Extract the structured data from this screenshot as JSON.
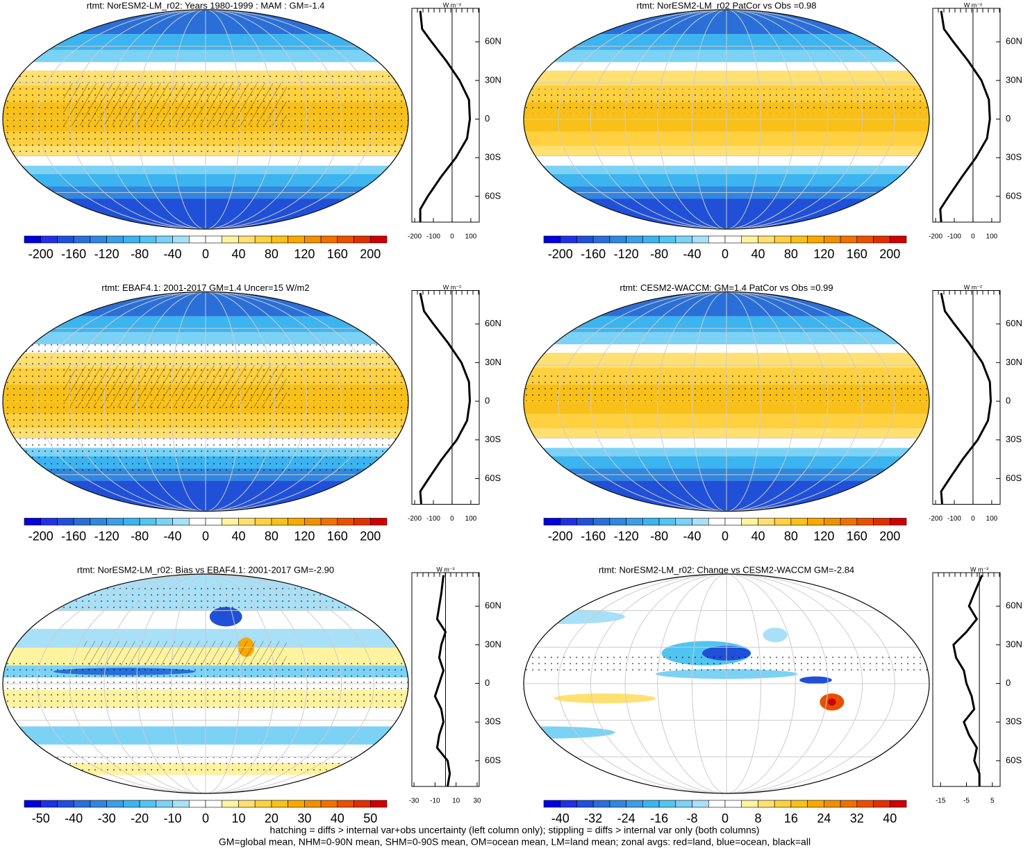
{
  "chart_data": [
    {
      "type": "zonal-map",
      "title": "rtmt: NorESM2-LM_r02: Years 1980-1999 : MAM : GM=-1.4",
      "colorbar": {
        "clim": [
          -220,
          220
        ],
        "ticks": [
          -200,
          -160,
          -120,
          -80,
          -40,
          0,
          40,
          80,
          120,
          160,
          200
        ]
      },
      "unit": "W m⁻²",
      "xlim": [
        -215,
        145
      ],
      "xticks": [
        -200,
        -100,
        0,
        100
      ],
      "ylim": [
        -80,
        86
      ],
      "yticks": [
        {
          "value": 60,
          "label": "60N"
        },
        {
          "value": 30,
          "label": "30N"
        },
        0,
        {
          "value": -30,
          "label": "30S"
        },
        {
          "value": -60,
          "label": "60S"
        }
      ],
      "lat": [
        84,
        70,
        60,
        45,
        30,
        15,
        0,
        -15,
        -30,
        -45,
        -60,
        -70,
        -80
      ],
      "values": [
        -170,
        -160,
        -110,
        -30,
        40,
        90,
        95,
        80,
        20,
        -60,
        -130,
        -170,
        -170
      ]
    },
    {
      "type": "zonal-map",
      "title": "rtmt: NorESM2-LM_r02 PatCor vs Obs =0.98",
      "colorbar": {
        "clim": [
          -220,
          220
        ],
        "ticks": [
          -200,
          -160,
          -120,
          -80,
          -40,
          0,
          40,
          80,
          120,
          160,
          200
        ]
      },
      "unit": "W m⁻²",
      "xlim": [
        -215,
        145
      ],
      "xticks": [
        -200,
        -100,
        0,
        100
      ],
      "ylim": [
        -80,
        86
      ],
      "yticks": [
        {
          "value": 60,
          "label": "60N"
        },
        {
          "value": 30,
          "label": "30N"
        },
        0,
        {
          "value": -30,
          "label": "30S"
        },
        {
          "value": -60,
          "label": "60S"
        }
      ],
      "lat": [
        84,
        70,
        60,
        45,
        30,
        15,
        0,
        -15,
        -30,
        -45,
        -60,
        -70,
        -80
      ],
      "values": [
        -170,
        -155,
        -105,
        -25,
        45,
        85,
        90,
        75,
        15,
        -60,
        -130,
        -175,
        -170
      ]
    },
    {
      "type": "zonal-map",
      "title": "rtmt: EBAF4.1: 2001-2017 GM=1.4 Uncer=15 W/m2",
      "colorbar": {
        "clim": [
          -220,
          220
        ],
        "ticks": [
          -200,
          -160,
          -120,
          -80,
          -40,
          0,
          40,
          80,
          120,
          160,
          200
        ]
      },
      "unit": "W m⁻²",
      "xlim": [
        -215,
        145
      ],
      "xticks": [
        -200,
        -100,
        0,
        100
      ],
      "ylim": [
        -80,
        86
      ],
      "yticks": [
        {
          "value": 60,
          "label": "60N"
        },
        {
          "value": 30,
          "label": "30N"
        },
        0,
        {
          "value": -30,
          "label": "30S"
        },
        {
          "value": -60,
          "label": "60S"
        }
      ],
      "lat": [
        84,
        70,
        60,
        45,
        30,
        15,
        0,
        -15,
        -30,
        -45,
        -60,
        -70,
        -80
      ],
      "values": [
        -170,
        -150,
        -100,
        -20,
        50,
        90,
        95,
        80,
        25,
        -55,
        -125,
        -170,
        -165
      ]
    },
    {
      "type": "zonal-map",
      "title": "rtmt: CESM2-WACCM: GM=1.4 PatCor vs Obs =0.99",
      "colorbar": {
        "clim": [
          -220,
          220
        ],
        "ticks": [
          -200,
          -160,
          -120,
          -80,
          -40,
          0,
          40,
          80,
          120,
          160,
          200
        ]
      },
      "unit": "W m⁻²",
      "xlim": [
        -215,
        145
      ],
      "xticks": [
        -200,
        -100,
        0,
        100
      ],
      "ylim": [
        -80,
        86
      ],
      "yticks": [
        {
          "value": 60,
          "label": "60N"
        },
        {
          "value": 30,
          "label": "30N"
        },
        0,
        {
          "value": -30,
          "label": "30S"
        },
        {
          "value": -60,
          "label": "60S"
        }
      ],
      "lat": [
        84,
        70,
        60,
        45,
        30,
        15,
        0,
        -15,
        -30,
        -45,
        -60,
        -70,
        -80
      ],
      "values": [
        -170,
        -150,
        -100,
        -20,
        50,
        90,
        95,
        80,
        25,
        -55,
        -125,
        -170,
        -165
      ]
    },
    {
      "type": "zonal-map",
      "title": "rtmt: NorESM2-LM_r02: Bias vs EBAF4.1: 2001-2017 GM=-2.90",
      "colorbar": {
        "clim": [
          -55,
          55
        ],
        "ticks": [
          -50,
          -40,
          -30,
          -20,
          -10,
          0,
          10,
          20,
          30,
          40,
          50
        ]
      },
      "unit": "W m⁻²",
      "xlim": [
        -32,
        32
      ],
      "xticks": [
        -30,
        -10,
        10,
        30
      ],
      "ylim": [
        -80,
        86
      ],
      "yticks": [
        {
          "value": 60,
          "label": "60N"
        },
        {
          "value": 30,
          "label": "30N"
        },
        0,
        {
          "value": -30,
          "label": "30S"
        },
        {
          "value": -60,
          "label": "60S"
        }
      ],
      "lat": [
        84,
        70,
        60,
        50,
        40,
        30,
        20,
        10,
        0,
        -10,
        -20,
        -30,
        -40,
        -50,
        -60,
        -70,
        -80
      ],
      "values": [
        -2,
        -4,
        -6,
        -8,
        0,
        -4,
        -6,
        -2,
        -6,
        -10,
        -4,
        -2,
        -6,
        -8,
        2,
        4,
        2
      ]
    },
    {
      "type": "zonal-map",
      "title": "rtmt: NorESM2-LM_r02: Change vs CESM2-WACCM GM=-2.84",
      "colorbar": {
        "clim": [
          -44,
          44
        ],
        "ticks": [
          -40,
          -32,
          -24,
          -16,
          -8,
          0,
          8,
          16,
          24,
          32,
          40
        ]
      },
      "unit": "W m⁻²",
      "xlim": [
        -18,
        8
      ],
      "xticks": [
        -15,
        -5,
        5
      ],
      "ylim": [
        -80,
        86
      ],
      "yticks": [
        {
          "value": 60,
          "label": "60N"
        },
        {
          "value": 30,
          "label": "30N"
        },
        0,
        {
          "value": -30,
          "label": "30S"
        },
        {
          "value": -60,
          "label": "60S"
        }
      ],
      "lat": [
        84,
        70,
        60,
        50,
        40,
        30,
        20,
        10,
        0,
        -10,
        -20,
        -30,
        -40,
        -50,
        -60,
        -70,
        -80
      ],
      "values": [
        1,
        -2,
        -4,
        -1,
        -5,
        -10,
        -9,
        -6,
        -5,
        -3,
        -2,
        -6,
        -4,
        -1,
        -2,
        0,
        0
      ]
    }
  ],
  "footer": [
    "hatching = diffs > internal var+obs uncertainty (left column only); stippling = diffs > internal var only (both columns)",
    "GM=global mean, NHM=0-90N mean, SHM=0-90S mean, OM=ocean mean, LM=land mean; zonal avgs: red=land, blue=ocean, black=all"
  ]
}
